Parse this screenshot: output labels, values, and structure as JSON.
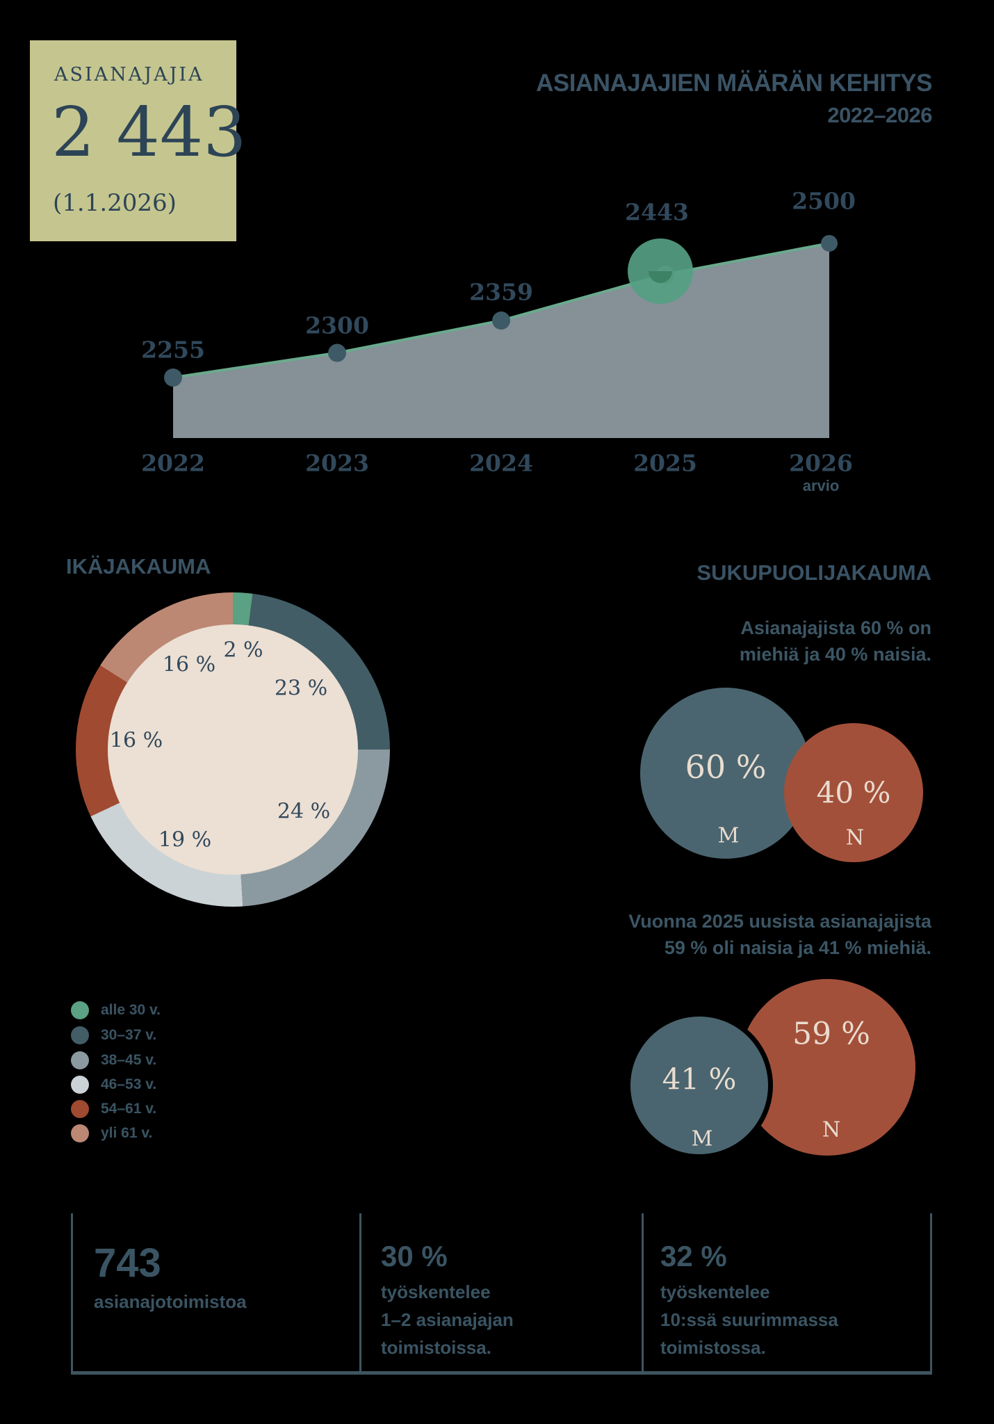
{
  "colors": {
    "background": "#000000",
    "badge_bg": "#c5c68f",
    "navy_text": "#31495c",
    "slate_text": "#3c5665",
    "area_fill": "#859097",
    "line_green": "#6aaa8d",
    "dot_slate": "#3e5a66",
    "highlight_green": "#55a083",
    "highlight_notch": "#3e8266",
    "donut_hole": "#ecdfd3",
    "male_circle": "#4a656f",
    "female_circle": "#a3503a",
    "circle_text": "#e9dccf",
    "footer_line": "#3f5560"
  },
  "badge": {
    "label": "ASIANAJAJIA",
    "value": "2 443",
    "date": "(1.1.2026)"
  },
  "trend": {
    "title_line1": "ASIANAJAJIEN MÄÄRÄN KEHITYS",
    "title_line2": "2022–2026",
    "arvio_label": "arvio",
    "points": [
      {
        "year": "2022",
        "value": 2255
      },
      {
        "year": "2023",
        "value": 2300
      },
      {
        "year": "2024",
        "value": 2359
      },
      {
        "year": "2025",
        "value": 2443
      },
      {
        "year": "2026",
        "value": 2500
      }
    ]
  },
  "age": {
    "title": "IKÄJAKAUMA",
    "segments": [
      {
        "label": "alle 30 v.",
        "pct": 2,
        "pct_label": "2 %",
        "color": "#5ba183"
      },
      {
        "label": "30–37 v.",
        "pct": 23,
        "pct_label": "23 %",
        "color": "#425d66"
      },
      {
        "label": "38–45 v.",
        "pct": 24,
        "pct_label": "24 %",
        "color": "#8b9aa0"
      },
      {
        "label": "46–53 v.",
        "pct": 19,
        "pct_label": "19 %",
        "color": "#cbd3d6"
      },
      {
        "label": "54–61 v.",
        "pct": 16,
        "pct_label": "16 %",
        "color": "#9f4a31"
      },
      {
        "label": "yli 61 v.",
        "pct": 16,
        "pct_label": "16 %",
        "color": "#bc8874"
      }
    ]
  },
  "gender": {
    "title": "SUKUPUOLIJAKAUMA",
    "para1_line1": "Asianajajista 60 % on",
    "para1_line2": "miehiä ja 40 % naisia.",
    "para2_line1": "Vuonna 2025 uusista asianajajista",
    "para2_line2": "59 % oli naisia ja 41 % miehiä.",
    "pair1": {
      "male_pct": "60 %",
      "male_letter": "M",
      "female_pct": "40 %",
      "female_letter": "N"
    },
    "pair2": {
      "male_pct": "41 %",
      "male_letter": "M",
      "female_pct": "59 %",
      "female_letter": "N"
    }
  },
  "footer": {
    "col1_value": "743",
    "col1_label": "asianajotoimistoa",
    "col2_value": "30 %",
    "col2_lines": [
      "työskentelee",
      "1–2 asianajajan",
      "toimistoissa."
    ],
    "col3_value": "32 %",
    "col3_lines": [
      "työskentelee",
      "10:ssä suurimmassa",
      "toimistossa."
    ]
  },
  "chart_data": [
    {
      "type": "area",
      "title": "ASIANAJAJIEN MÄÄRÄN KEHITYS 2022–2026",
      "categories": [
        "2022",
        "2023",
        "2024",
        "2025",
        "2026 arvio"
      ],
      "values": [
        2255,
        2300,
        2359,
        2443,
        2500
      ],
      "highlighted_point": "2025",
      "xlabel": "",
      "ylabel": "",
      "ylim": [
        2150,
        2560
      ],
      "grid": false,
      "legend": "none"
    },
    {
      "type": "pie",
      "title": "IKÄJAKAUMA",
      "categories": [
        "alle 30 v.",
        "30–37 v.",
        "38–45 v.",
        "46–53 v.",
        "54–61 v.",
        "yli 61 v."
      ],
      "values": [
        2,
        23,
        24,
        19,
        16,
        16
      ],
      "legend_position": "bottom-left",
      "style": "donut"
    },
    {
      "type": "bubble",
      "title": "SUKUPUOLIJAKAUMA — kaikki asianajajat",
      "categories": [
        "M",
        "N"
      ],
      "values": [
        60,
        40
      ]
    },
    {
      "type": "bubble",
      "title": "SUKUPUOLIJAKAUMA — uudet asianajajat 2025",
      "categories": [
        "M",
        "N"
      ],
      "values": [
        41,
        59
      ]
    }
  ]
}
